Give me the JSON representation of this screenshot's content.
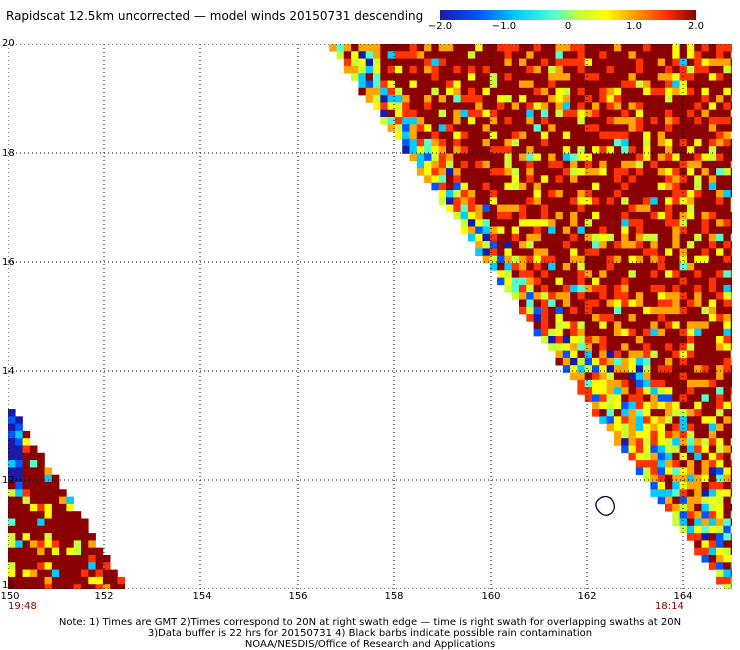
{
  "title": "Rapidscat 12.5km uncorrected — model winds 20150731 descending",
  "colorbar": {
    "labels": [
      "−2.0",
      "−1.0",
      "0",
      "1.0",
      "2.0"
    ],
    "colors": [
      "#1a1aa8",
      "#0055ff",
      "#00ccff",
      "#55ffcc",
      "#ccff33",
      "#ffff00",
      "#ffa500",
      "#ff3300",
      "#8b0000"
    ]
  },
  "map": {
    "y_ticks": [
      "20",
      "18",
      "16",
      "14",
      "12",
      "10"
    ],
    "x_ticks": [
      "150",
      "152",
      "154",
      "156",
      "158",
      "160",
      "162",
      "164"
    ],
    "time_left": "19:48",
    "time_right": "18:14"
  },
  "notes": [
    "Note: 1) Times are GMT 2)Times correspond to 20N at right swath edge — time is right swath for overlapping swaths at 20N",
    "3)Data buffer is 22 hrs for 20150731 4) Black barbs indicate possible rain contamination",
    "NOAA/NESDIS/Office of Research and Applications"
  ]
}
